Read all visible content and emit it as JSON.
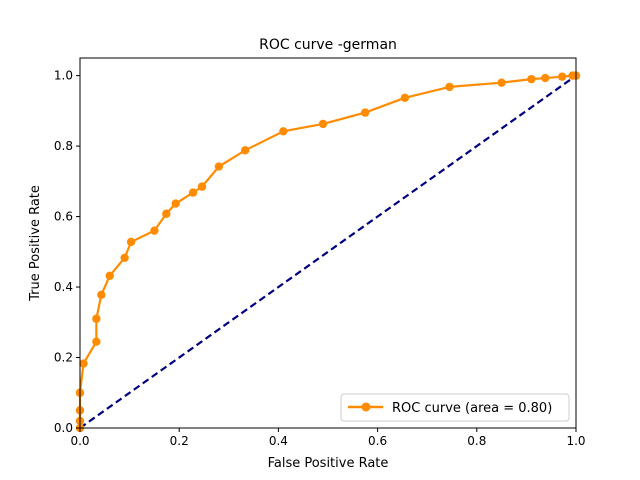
{
  "chart_data": {
    "type": "line",
    "title": "ROC curve -german",
    "xlabel": "False Positive Rate",
    "ylabel": "True Positive Rate",
    "xlim": [
      0.0,
      1.0
    ],
    "ylim": [
      0.0,
      1.05
    ],
    "xticks": [
      "0.0",
      "0.2",
      "0.4",
      "0.6",
      "0.8",
      "1.0"
    ],
    "yticks": [
      "0.0",
      "0.2",
      "0.4",
      "0.6",
      "0.8",
      "1.0"
    ],
    "grid": false,
    "legend_position": "lower-right",
    "series": [
      {
        "name": "ROC curve (area = 0.80)",
        "color": "#ff8c00",
        "style": "solid",
        "marker": "circle",
        "x": [
          0.0,
          0.0,
          0.0,
          0.0,
          0.007,
          0.033,
          0.033,
          0.043,
          0.06,
          0.09,
          0.103,
          0.15,
          0.174,
          0.193,
          0.228,
          0.246,
          0.28,
          0.333,
          0.41,
          0.49,
          0.575,
          0.655,
          0.745,
          0.85,
          0.91,
          0.938,
          0.972,
          0.993,
          1.0
        ],
        "y": [
          0.0,
          0.02,
          0.05,
          0.1,
          0.183,
          0.245,
          0.31,
          0.378,
          0.432,
          0.483,
          0.528,
          0.56,
          0.608,
          0.637,
          0.668,
          0.685,
          0.742,
          0.788,
          0.842,
          0.863,
          0.895,
          0.937,
          0.968,
          0.98,
          0.99,
          0.993,
          0.997,
          1.0,
          1.0
        ]
      },
      {
        "name": "",
        "color": "#000080",
        "style": "dashed",
        "marker": "none",
        "x": [
          0.0,
          1.0
        ],
        "y": [
          0.0,
          1.0
        ]
      }
    ]
  }
}
